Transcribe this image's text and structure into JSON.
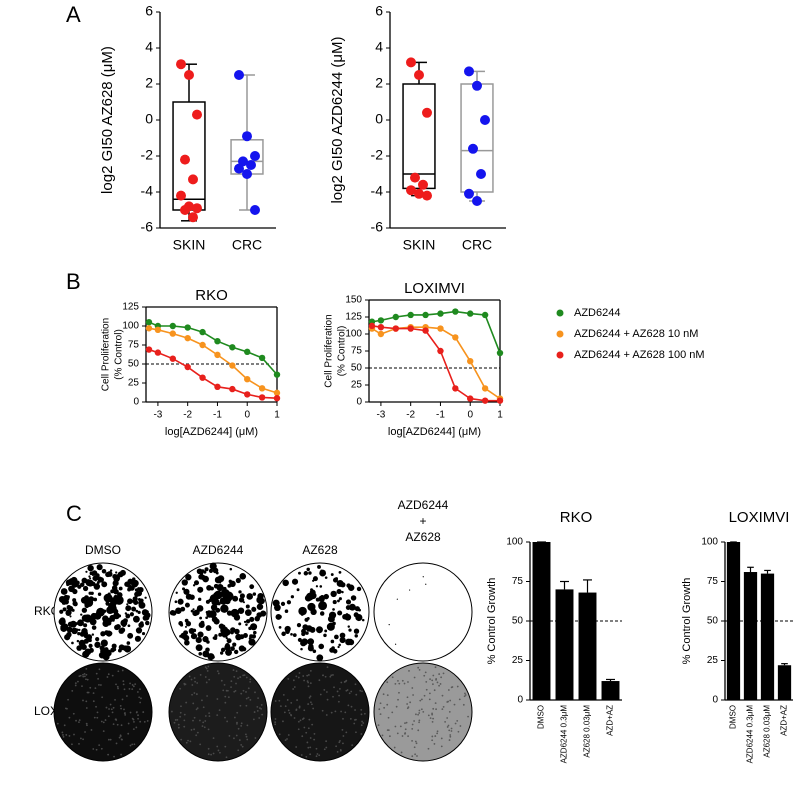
{
  "panels": [
    "A",
    "B",
    "C"
  ],
  "chart_data": [
    {
      "type": "box",
      "ylabel": "log2 GI50 AZ628 (μM)",
      "categories": [
        "SKIN",
        "CRC"
      ],
      "ylim": [
        -6,
        6
      ],
      "yticks": [
        -6,
        -4,
        -2,
        0,
        2,
        4,
        6
      ],
      "boxes": [
        {
          "min": -5.6,
          "q1": -5.0,
          "median": -4.4,
          "q3": 1.0,
          "max": 3.1
        },
        {
          "min": -5.0,
          "q1": -3.0,
          "median": -2.3,
          "q3": -1.1,
          "max": 2.5
        }
      ],
      "points": [
        [
          3.1,
          2.5,
          0.3,
          -2.2,
          -3.3,
          -4.2,
          -4.8,
          -4.9,
          -5.0,
          -5.4
        ],
        [
          2.5,
          -0.9,
          -2.0,
          -2.3,
          -2.5,
          -2.7,
          -3.0,
          -5.0
        ]
      ],
      "box_colors": [
        "#000000",
        "#999999"
      ],
      "point_colors": [
        "#ee1c1c",
        "#1414ee"
      ]
    },
    {
      "type": "box",
      "ylabel": "log2 GI50 AZD6244 (μM)",
      "categories": [
        "SKIN",
        "CRC"
      ],
      "ylim": [
        -6,
        6
      ],
      "yticks": [
        -6,
        -4,
        -2,
        0,
        2,
        4,
        6
      ],
      "boxes": [
        {
          "min": -4.2,
          "q1": -3.8,
          "median": -3.0,
          "q3": 2.0,
          "max": 3.2
        },
        {
          "min": -4.5,
          "q1": -4.0,
          "median": -1.7,
          "q3": 2.0,
          "max": 2.7
        }
      ],
      "points": [
        [
          3.2,
          2.5,
          0.4,
          -3.2,
          -3.6,
          -3.9,
          -4.1,
          -4.2
        ],
        [
          2.7,
          1.9,
          0.0,
          -1.6,
          -3.0,
          -4.1,
          -4.5
        ]
      ],
      "box_colors": [
        "#000000",
        "#999999"
      ],
      "point_colors": [
        "#ee1c1c",
        "#1414ee"
      ]
    },
    {
      "type": "line",
      "title": "RKO",
      "ylabel": [
        "Cell Proliferation",
        "(% Control)"
      ],
      "xlabel": "log[AZD6244] (μM)",
      "x": [
        -3.3,
        -3,
        -2.5,
        -2,
        -1.5,
        -1,
        -0.5,
        0,
        0.5,
        1
      ],
      "xlim": [
        -3.4,
        1
      ],
      "xticks": [
        -3,
        -2,
        -1,
        0,
        1
      ],
      "ylim": [
        0,
        125
      ],
      "yticks": [
        0,
        25,
        50,
        75,
        100,
        125
      ],
      "refline": 50,
      "frame": true,
      "series": [
        {
          "color": "#1f8a1f",
          "values": [
            105,
            100,
            100,
            98,
            92,
            80,
            72,
            66,
            58,
            36
          ]
        },
        {
          "color": "#f7931e",
          "values": [
            97,
            95,
            90,
            84,
            75,
            62,
            48,
            30,
            18,
            12
          ]
        },
        {
          "color": "#e8201c",
          "values": [
            69,
            65,
            57,
            46,
            32,
            20,
            17,
            10,
            6,
            5
          ]
        }
      ]
    },
    {
      "type": "line",
      "title": "LOXIMVI",
      "ylabel": [
        "Cell Proliferation",
        "(% Control)"
      ],
      "xlabel": "log[AZD6244] (μM)",
      "x": [
        -3.3,
        -3,
        -2.5,
        -2,
        -1.5,
        -1,
        -0.5,
        0,
        0.5,
        1
      ],
      "xlim": [
        -3.4,
        1
      ],
      "xticks": [
        -3,
        -2,
        -1,
        0,
        1
      ],
      "ylim": [
        0,
        150
      ],
      "yticks": [
        0,
        25,
        50,
        75,
        100,
        125,
        150
      ],
      "refline": 50,
      "frame": true,
      "legend": "right",
      "series": [
        {
          "name": "AZD6244",
          "color": "#1f8a1f",
          "values": [
            118,
            120,
            125,
            128,
            128,
            130,
            133,
            130,
            128,
            72
          ]
        },
        {
          "name": "AZD6244 + AZ628 10 nM",
          "color": "#f7931e",
          "values": [
            108,
            100,
            108,
            110,
            110,
            108,
            95,
            60,
            20,
            5
          ]
        },
        {
          "name": "AZD6244 + AZ628 100 nM",
          "color": "#e8201c",
          "values": [
            112,
            110,
            108,
            108,
            105,
            75,
            20,
            5,
            2,
            2
          ]
        }
      ]
    },
    {
      "type": "bar",
      "title": "RKO",
      "ylabel": "% Control Growth",
      "categories": [
        "DMSO",
        "AZD6244 0.3μM",
        "AZ628 0.03μM",
        "AZD+AZ"
      ],
      "values": [
        100,
        70,
        68,
        12
      ],
      "errors": [
        0,
        5,
        8,
        1
      ],
      "color": "#000000",
      "ylim": [
        0,
        100
      ],
      "yticks": [
        0,
        25,
        50,
        75,
        100
      ],
      "refline": 50
    },
    {
      "type": "bar",
      "title": "LOXIMVI",
      "ylabel": "% Control Growth",
      "categories": [
        "DMSO",
        "AZD6244 0.3μM",
        "AZ628 0.03μM",
        "AZD+AZ"
      ],
      "values": [
        100,
        81,
        80,
        22
      ],
      "errors": [
        0,
        3,
        2,
        1
      ],
      "color": "#000000",
      "ylim": [
        0,
        100
      ],
      "yticks": [
        0,
        25,
        50,
        75,
        100
      ],
      "refline": 50
    }
  ],
  "colony_assay": {
    "columns": [
      "DMSO",
      "AZD6244",
      "AZ628",
      [
        "AZD6244",
        "+",
        "AZ628"
      ]
    ],
    "rows": [
      "RKO",
      "LOXIMVI"
    ]
  }
}
